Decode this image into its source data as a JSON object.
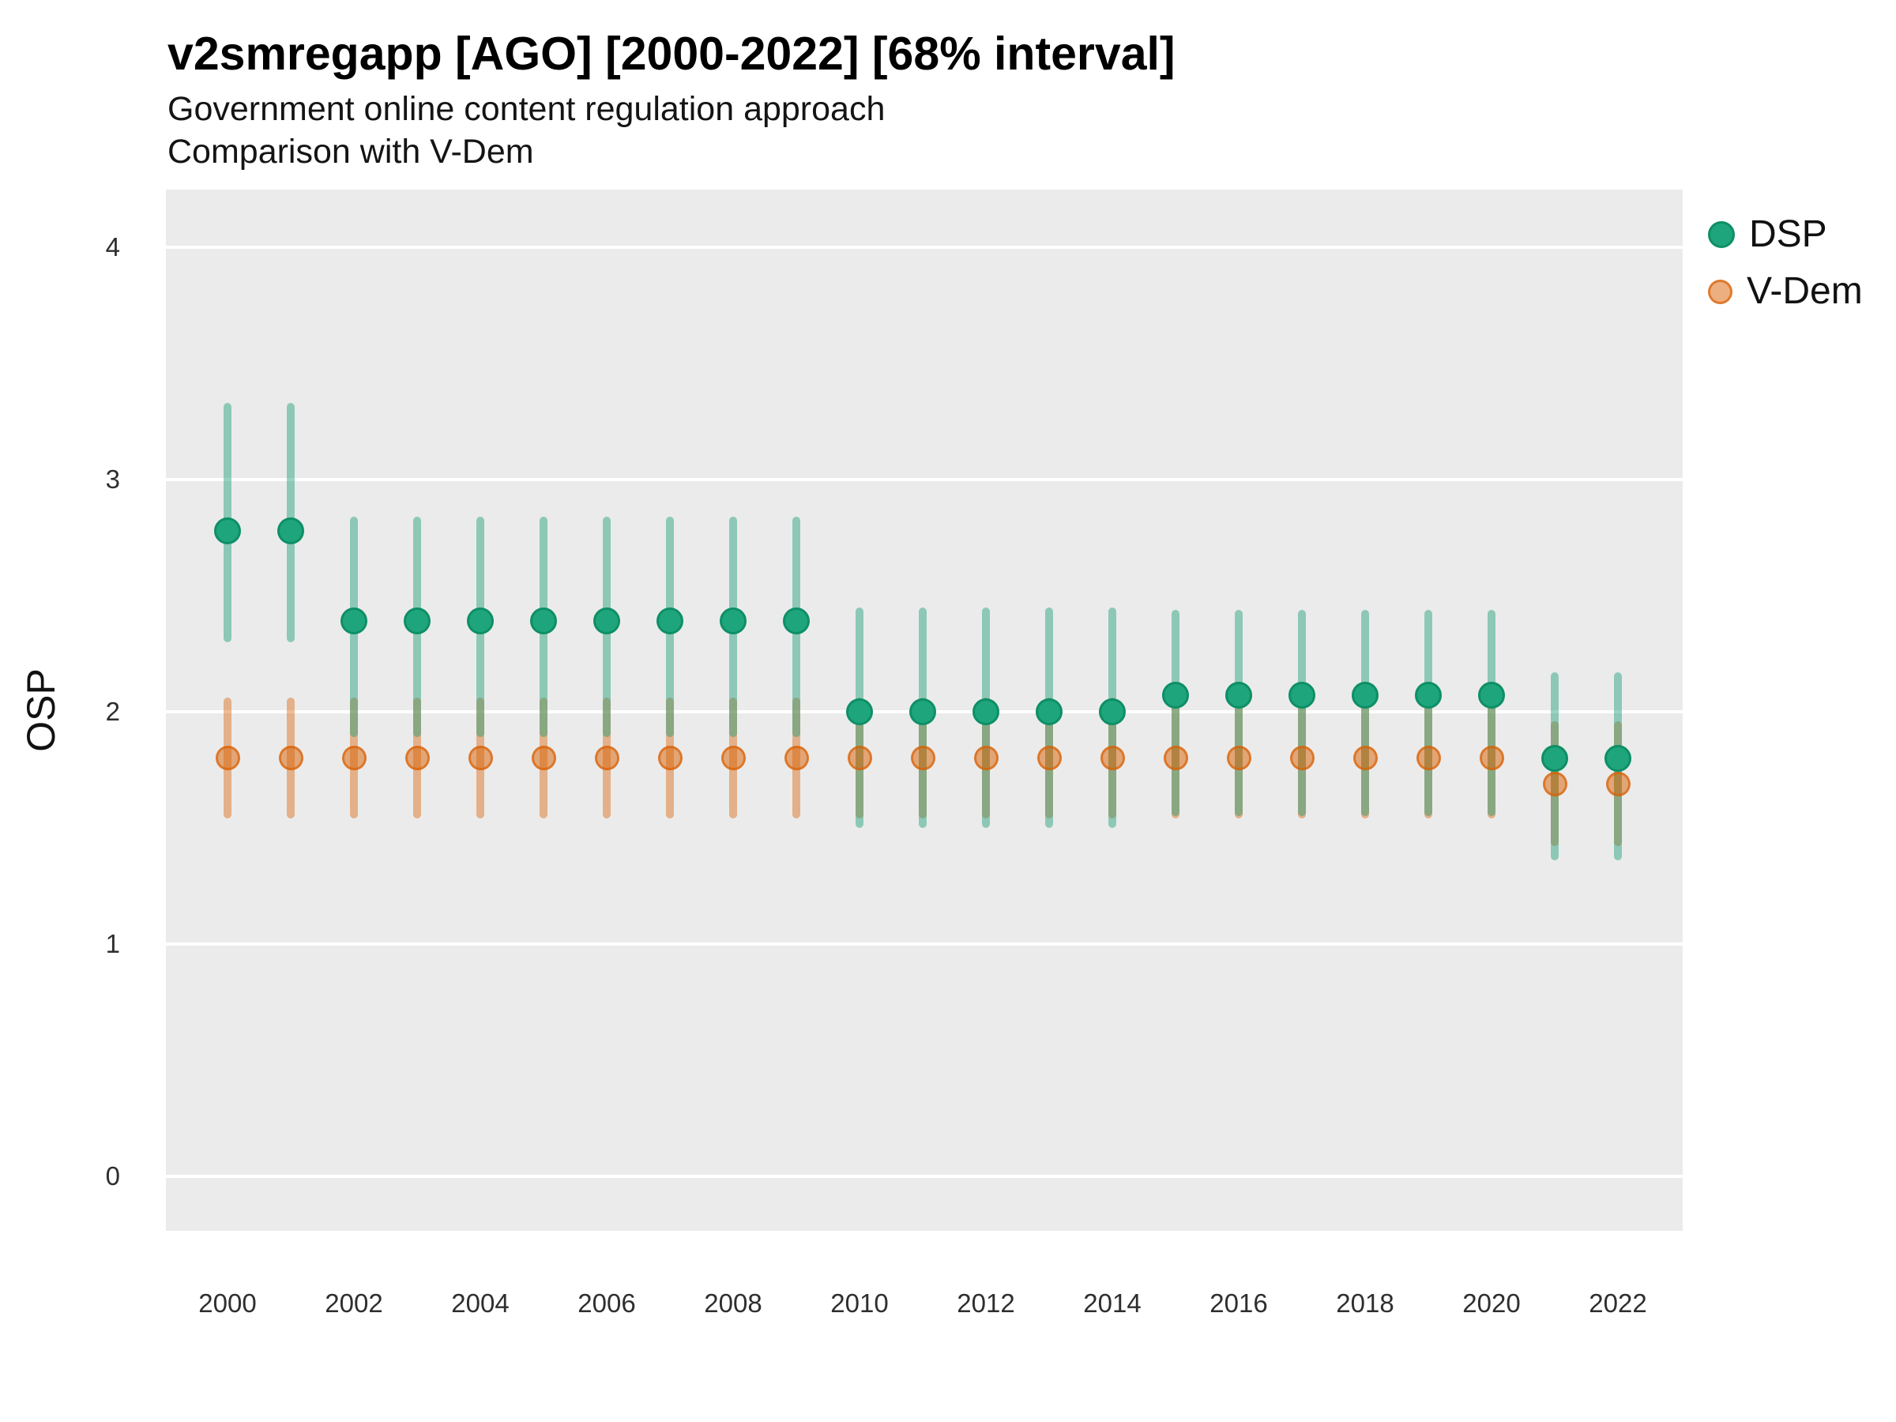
{
  "header": {
    "title": "v2smregapp [AGO] [2000-2022] [68% interval]",
    "subtitle1": "Government online content regulation approach",
    "subtitle2": "Comparison with V-Dem"
  },
  "legend": {
    "items": [
      {
        "label": "DSP",
        "color": "#1B9E77"
      },
      {
        "label": "V-Dem",
        "color": "#D95F02"
      }
    ],
    "position": "right-top"
  },
  "chart_data": {
    "type": "scatter",
    "subtype": "pointrange",
    "title": "v2smregapp [AGO] [2000-2022] [68% interval]",
    "subtitle": [
      "Government online content regulation approach",
      "Comparison with V-Dem"
    ],
    "interval": "68%",
    "xlabel": "",
    "ylabel": "OSP",
    "ylim": [
      -0.235,
      4.248
    ],
    "yticks": [
      0,
      1,
      2,
      3,
      4
    ],
    "xticks": [
      2000,
      2002,
      2004,
      2006,
      2008,
      2010,
      2012,
      2014,
      2016,
      2018,
      2020,
      2022
    ],
    "grid": "horizontal-major-only",
    "panel_background": "#EBEBEB",
    "gridline_color": "#FFFFFF",
    "colors": {
      "dsp_solid": "#1FA57C",
      "dsp_edge": "#0E8F66",
      "base_green": "#1B9E77",
      "base_orange": "#D95F02"
    },
    "series": [
      {
        "name": "DSP",
        "points": [
          {
            "year": 2000,
            "value": 2.78,
            "lo": 2.3,
            "hi": 3.33
          },
          {
            "year": 2001,
            "value": 2.78,
            "lo": 2.3,
            "hi": 3.33
          },
          {
            "year": 2002,
            "value": 2.39,
            "lo": 1.89,
            "hi": 2.84
          },
          {
            "year": 2003,
            "value": 2.39,
            "lo": 1.89,
            "hi": 2.84
          },
          {
            "year": 2004,
            "value": 2.39,
            "lo": 1.89,
            "hi": 2.84
          },
          {
            "year": 2005,
            "value": 2.39,
            "lo": 1.89,
            "hi": 2.84
          },
          {
            "year": 2006,
            "value": 2.39,
            "lo": 1.89,
            "hi": 2.84
          },
          {
            "year": 2007,
            "value": 2.39,
            "lo": 1.89,
            "hi": 2.84
          },
          {
            "year": 2008,
            "value": 2.39,
            "lo": 1.89,
            "hi": 2.84
          },
          {
            "year": 2009,
            "value": 2.39,
            "lo": 1.89,
            "hi": 2.84
          },
          {
            "year": 2010,
            "value": 2.0,
            "lo": 1.5,
            "hi": 2.45
          },
          {
            "year": 2011,
            "value": 2.0,
            "lo": 1.5,
            "hi": 2.45
          },
          {
            "year": 2012,
            "value": 2.0,
            "lo": 1.5,
            "hi": 2.45
          },
          {
            "year": 2013,
            "value": 2.0,
            "lo": 1.5,
            "hi": 2.45
          },
          {
            "year": 2014,
            "value": 2.0,
            "lo": 1.5,
            "hi": 2.45
          },
          {
            "year": 2015,
            "value": 2.07,
            "lo": 1.55,
            "hi": 2.44
          },
          {
            "year": 2016,
            "value": 2.07,
            "lo": 1.55,
            "hi": 2.44
          },
          {
            "year": 2017,
            "value": 2.07,
            "lo": 1.55,
            "hi": 2.44
          },
          {
            "year": 2018,
            "value": 2.07,
            "lo": 1.55,
            "hi": 2.44
          },
          {
            "year": 2019,
            "value": 2.07,
            "lo": 1.55,
            "hi": 2.44
          },
          {
            "year": 2020,
            "value": 2.07,
            "lo": 1.55,
            "hi": 2.44
          },
          {
            "year": 2021,
            "value": 1.8,
            "lo": 1.36,
            "hi": 2.17
          },
          {
            "year": 2022,
            "value": 1.8,
            "lo": 1.36,
            "hi": 2.17
          }
        ]
      },
      {
        "name": "V-Dem",
        "points": [
          {
            "year": 2000,
            "value": 1.8,
            "lo": 1.54,
            "hi": 2.06
          },
          {
            "year": 2001,
            "value": 1.8,
            "lo": 1.54,
            "hi": 2.06
          },
          {
            "year": 2002,
            "value": 1.8,
            "lo": 1.54,
            "hi": 2.06
          },
          {
            "year": 2003,
            "value": 1.8,
            "lo": 1.54,
            "hi": 2.06
          },
          {
            "year": 2004,
            "value": 1.8,
            "lo": 1.54,
            "hi": 2.06
          },
          {
            "year": 2005,
            "value": 1.8,
            "lo": 1.54,
            "hi": 2.06
          },
          {
            "year": 2006,
            "value": 1.8,
            "lo": 1.54,
            "hi": 2.06
          },
          {
            "year": 2007,
            "value": 1.8,
            "lo": 1.54,
            "hi": 2.06
          },
          {
            "year": 2008,
            "value": 1.8,
            "lo": 1.54,
            "hi": 2.06
          },
          {
            "year": 2009,
            "value": 1.8,
            "lo": 1.54,
            "hi": 2.06
          },
          {
            "year": 2010,
            "value": 1.8,
            "lo": 1.54,
            "hi": 2.06
          },
          {
            "year": 2011,
            "value": 1.8,
            "lo": 1.54,
            "hi": 2.06
          },
          {
            "year": 2012,
            "value": 1.8,
            "lo": 1.54,
            "hi": 2.06
          },
          {
            "year": 2013,
            "value": 1.8,
            "lo": 1.54,
            "hi": 2.06
          },
          {
            "year": 2014,
            "value": 1.8,
            "lo": 1.54,
            "hi": 2.06
          },
          {
            "year": 2015,
            "value": 1.8,
            "lo": 1.54,
            "hi": 2.06
          },
          {
            "year": 2016,
            "value": 1.8,
            "lo": 1.54,
            "hi": 2.06
          },
          {
            "year": 2017,
            "value": 1.8,
            "lo": 1.54,
            "hi": 2.06
          },
          {
            "year": 2018,
            "value": 1.8,
            "lo": 1.54,
            "hi": 2.06
          },
          {
            "year": 2019,
            "value": 1.8,
            "lo": 1.54,
            "hi": 2.06
          },
          {
            "year": 2020,
            "value": 1.8,
            "lo": 1.54,
            "hi": 2.06
          },
          {
            "year": 2021,
            "value": 1.69,
            "lo": 1.42,
            "hi": 1.96
          },
          {
            "year": 2022,
            "value": 1.69,
            "lo": 1.42,
            "hi": 1.96
          }
        ]
      }
    ]
  }
}
